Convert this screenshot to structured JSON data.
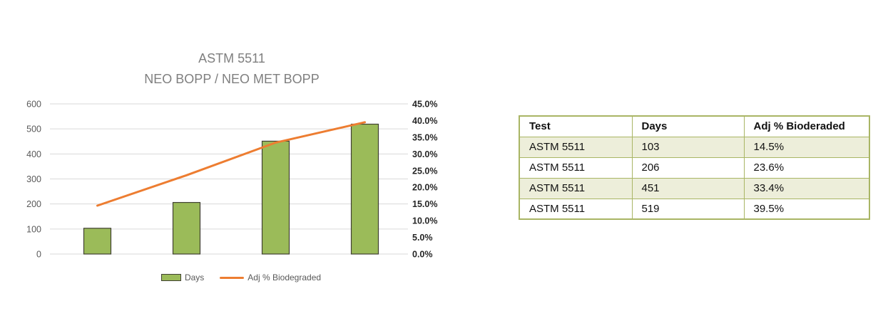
{
  "chart": {
    "title": "ASTM 5511",
    "subtitle": "NEO BOPP / NEO MET BOPP",
    "title_color": "#7f7f7f"
  },
  "chart_data": {
    "type": "combo",
    "title": "ASTM 5511",
    "subtitle": "NEO BOPP / NEO MET BOPP",
    "categories": [
      "ASTM 5511",
      "ASTM 5511",
      "ASTM 5511",
      "ASTM 5511"
    ],
    "series": [
      {
        "name": "Days",
        "type": "bar",
        "axis": "left",
        "values": [
          103,
          206,
          451,
          519
        ],
        "color": "#9bbb59",
        "border_color": "#404032"
      },
      {
        "name": "Adj % Biodegraded",
        "type": "line",
        "axis": "right",
        "values": [
          14.5,
          23.6,
          33.4,
          39.5
        ],
        "color": "#ed7d31"
      }
    ],
    "left_axis": {
      "min": 0,
      "max": 600,
      "tick_step": 100,
      "tick_labels": [
        "0",
        "100",
        "200",
        "300",
        "400",
        "500",
        "600"
      ],
      "label_color": "#595959"
    },
    "right_axis": {
      "min": 0,
      "max": 45,
      "tick_step": 5,
      "tick_labels": [
        "0.0%",
        "5.0%",
        "10.0%",
        "15.0%",
        "20.0%",
        "25.0%",
        "30.0%",
        "35.0%",
        "40.0%",
        "45.0%"
      ],
      "label_color": "#262626"
    },
    "gridlines": {
      "orientation": "horizontal",
      "left_axis_step": 100,
      "color": "#dadada",
      "visible": true
    },
    "legend_position": "bottom",
    "category_axis_labels_visible": false
  },
  "table": {
    "headers": [
      "Test",
      "Days",
      "Adj % Bioderaded"
    ],
    "rows": [
      [
        "ASTM 5511",
        "103",
        "14.5%"
      ],
      [
        "ASTM 5511",
        "206",
        "23.6%"
      ],
      [
        "ASTM 5511",
        "451",
        "33.4%"
      ],
      [
        "ASTM 5511",
        "519",
        "39.5%"
      ]
    ],
    "style": {
      "border_color": "#a9b564",
      "alt_row_fill": "#edeeda",
      "header_fill": "#ffffff",
      "text_color": "#111111"
    }
  }
}
